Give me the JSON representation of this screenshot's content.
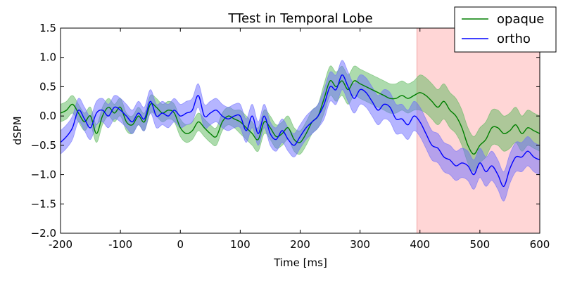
{
  "chart_data": {
    "type": "line",
    "title": "TTest in Temporal Lobe",
    "xlabel": "Time [ms]",
    "ylabel": "dSPM",
    "xlim": [
      -200,
      600
    ],
    "ylim": [
      -2.0,
      1.5
    ],
    "xticks": [
      -200,
      -100,
      0,
      100,
      200,
      300,
      400,
      500,
      600
    ],
    "xtick_labels": [
      "-200",
      "-100",
      "0",
      "100",
      "200",
      "300",
      "400",
      "500",
      "600"
    ],
    "yticks": [
      1.5,
      1.0,
      0.5,
      0.0,
      -0.5,
      -1.0,
      -1.5,
      -2.0
    ],
    "ytick_labels": [
      "1.5",
      "1.0",
      "0.5",
      "0.0",
      "−0.5",
      "−1.0",
      "−1.5",
      "−2.0"
    ],
    "grid": false,
    "legend_position": "top-right",
    "shaded_region": {
      "x_start": 395,
      "x_end": 600,
      "color": "#ffd6d6"
    },
    "series": [
      {
        "name": "opaque",
        "color": "#007f00",
        "band_color": "#5cb85c",
        "x": [
          -200,
          -190,
          -180,
          -170,
          -160,
          -150,
          -140,
          -130,
          -120,
          -110,
          -100,
          -90,
          -80,
          -70,
          -60,
          -50,
          -40,
          -30,
          -20,
          -10,
          0,
          10,
          20,
          30,
          40,
          50,
          60,
          70,
          80,
          90,
          100,
          110,
          120,
          130,
          140,
          150,
          160,
          170,
          180,
          190,
          200,
          210,
          220,
          230,
          240,
          250,
          260,
          270,
          280,
          290,
          300,
          310,
          320,
          330,
          340,
          350,
          360,
          370,
          380,
          390,
          400,
          410,
          420,
          430,
          440,
          450,
          460,
          470,
          480,
          490,
          500,
          510,
          520,
          530,
          540,
          550,
          560,
          570,
          580,
          590,
          600
        ],
        "y": [
          0.05,
          0.1,
          0.2,
          0.05,
          -0.1,
          0.0,
          -0.3,
          0.0,
          0.15,
          0.05,
          0.15,
          -0.1,
          -0.15,
          0.0,
          -0.1,
          0.2,
          0.15,
          0.05,
          0.1,
          0.05,
          -0.2,
          -0.3,
          -0.25,
          -0.1,
          -0.2,
          -0.3,
          -0.35,
          -0.1,
          0.0,
          -0.05,
          -0.1,
          -0.2,
          -0.3,
          -0.4,
          -0.1,
          -0.2,
          -0.35,
          -0.3,
          -0.2,
          -0.4,
          -0.45,
          -0.3,
          -0.1,
          0.0,
          0.3,
          0.6,
          0.5,
          0.6,
          0.45,
          0.6,
          0.55,
          0.5,
          0.45,
          0.4,
          0.35,
          0.3,
          0.3,
          0.35,
          0.3,
          0.35,
          0.4,
          0.35,
          0.25,
          0.15,
          0.25,
          0.1,
          0.0,
          -0.2,
          -0.5,
          -0.65,
          -0.5,
          -0.4,
          -0.2,
          -0.2,
          -0.3,
          -0.25,
          -0.15,
          -0.3,
          -0.2,
          -0.25,
          -0.3
        ],
        "ci_halfwidth": [
          0.15,
          0.15,
          0.15,
          0.15,
          0.15,
          0.15,
          0.15,
          0.15,
          0.15,
          0.15,
          0.15,
          0.15,
          0.15,
          0.15,
          0.15,
          0.15,
          0.15,
          0.15,
          0.15,
          0.15,
          0.15,
          0.15,
          0.15,
          0.15,
          0.15,
          0.15,
          0.15,
          0.15,
          0.15,
          0.15,
          0.2,
          0.2,
          0.2,
          0.2,
          0.2,
          0.2,
          0.2,
          0.2,
          0.2,
          0.2,
          0.2,
          0.2,
          0.2,
          0.2,
          0.25,
          0.25,
          0.25,
          0.25,
          0.25,
          0.25,
          0.25,
          0.25,
          0.25,
          0.25,
          0.25,
          0.25,
          0.25,
          0.25,
          0.25,
          0.25,
          0.3,
          0.3,
          0.3,
          0.3,
          0.3,
          0.3,
          0.3,
          0.3,
          0.3,
          0.3,
          0.3,
          0.3,
          0.3,
          0.3,
          0.3,
          0.3,
          0.3,
          0.3,
          0.3,
          0.3,
          0.3
        ]
      },
      {
        "name": "ortho",
        "color": "#0000ff",
        "band_color": "#6b6bff",
        "x": [
          -200,
          -190,
          -180,
          -170,
          -160,
          -150,
          -140,
          -130,
          -120,
          -110,
          -100,
          -90,
          -80,
          -70,
          -60,
          -50,
          -40,
          -30,
          -20,
          -10,
          0,
          10,
          20,
          30,
          40,
          50,
          60,
          70,
          80,
          90,
          100,
          110,
          120,
          130,
          140,
          150,
          160,
          170,
          180,
          190,
          200,
          210,
          220,
          230,
          240,
          250,
          260,
          270,
          280,
          290,
          300,
          310,
          320,
          330,
          340,
          350,
          360,
          370,
          380,
          390,
          400,
          410,
          420,
          430,
          440,
          450,
          460,
          470,
          480,
          490,
          500,
          510,
          520,
          530,
          540,
          550,
          560,
          570,
          580,
          590,
          600
        ],
        "y": [
          -0.45,
          -0.35,
          -0.2,
          0.1,
          -0.05,
          -0.2,
          0.05,
          0.1,
          0.0,
          0.15,
          0.1,
          0.0,
          -0.1,
          0.05,
          -0.05,
          0.25,
          0.0,
          0.05,
          0.0,
          0.1,
          0.0,
          0.05,
          0.1,
          0.35,
          0.0,
          0.05,
          0.1,
          0.0,
          -0.05,
          0.0,
          0.0,
          -0.25,
          0.0,
          -0.3,
          0.0,
          -0.3,
          -0.4,
          -0.25,
          -0.4,
          -0.5,
          -0.35,
          -0.2,
          -0.1,
          0.0,
          0.2,
          0.5,
          0.45,
          0.7,
          0.5,
          0.3,
          0.45,
          0.4,
          0.25,
          0.1,
          0.2,
          0.15,
          -0.05,
          -0.05,
          -0.15,
          0.0,
          -0.1,
          -0.3,
          -0.5,
          -0.55,
          -0.7,
          -0.75,
          -0.85,
          -0.8,
          -0.85,
          -1.0,
          -0.8,
          -0.95,
          -0.85,
          -1.0,
          -1.2,
          -0.9,
          -0.7,
          -0.7,
          -0.6,
          -0.7,
          -0.75
        ],
        "ci_halfwidth": [
          0.2,
          0.2,
          0.2,
          0.2,
          0.2,
          0.2,
          0.2,
          0.2,
          0.2,
          0.2,
          0.2,
          0.2,
          0.2,
          0.2,
          0.2,
          0.2,
          0.2,
          0.2,
          0.2,
          0.2,
          0.2,
          0.2,
          0.2,
          0.2,
          0.2,
          0.2,
          0.2,
          0.2,
          0.2,
          0.2,
          0.2,
          0.2,
          0.2,
          0.2,
          0.2,
          0.2,
          0.2,
          0.2,
          0.2,
          0.2,
          0.2,
          0.2,
          0.2,
          0.2,
          0.25,
          0.25,
          0.25,
          0.25,
          0.25,
          0.25,
          0.25,
          0.25,
          0.25,
          0.25,
          0.25,
          0.25,
          0.25,
          0.25,
          0.25,
          0.25,
          0.25,
          0.25,
          0.25,
          0.25,
          0.25,
          0.25,
          0.25,
          0.25,
          0.25,
          0.25,
          0.25,
          0.25,
          0.25,
          0.25,
          0.25,
          0.25,
          0.25,
          0.25,
          0.25,
          0.25,
          0.25
        ]
      }
    ]
  }
}
